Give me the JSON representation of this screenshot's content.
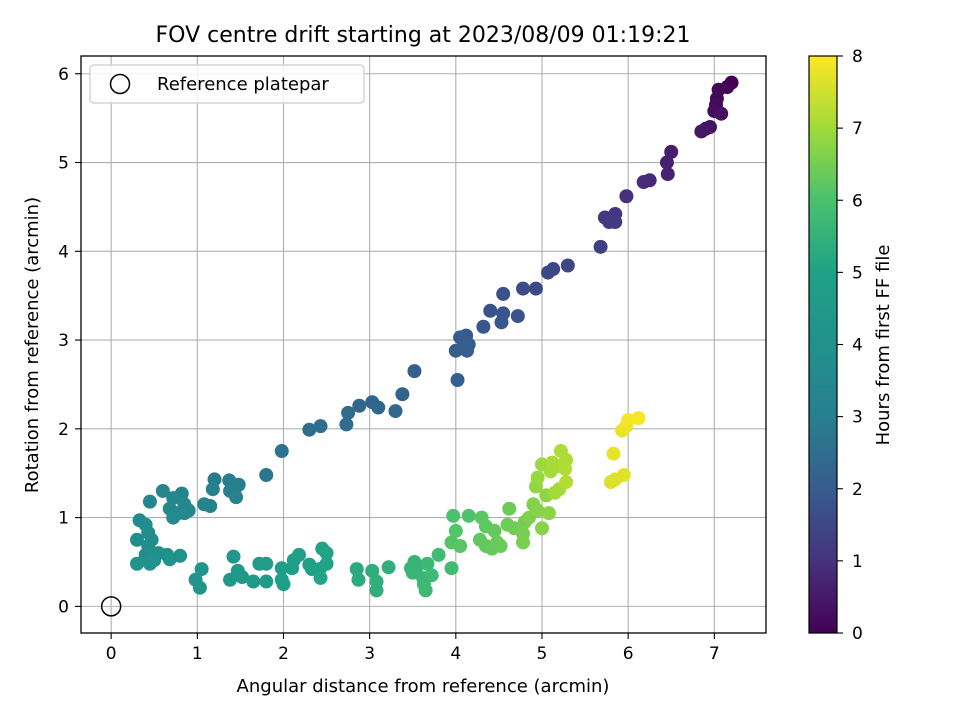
{
  "chart_data": {
    "type": "scatter",
    "title": "FOV centre drift starting at 2023/08/09 01:19:21",
    "xlabel": "Angular distance from reference (arcmin)",
    "ylabel": "Rotation from reference (arcmin)",
    "xlim": [
      -0.35,
      7.6
    ],
    "ylim": [
      -0.3,
      6.2
    ],
    "xticks": [
      "0",
      "1",
      "2",
      "3",
      "4",
      "5",
      "6",
      "7"
    ],
    "yticks": [
      "0",
      "1",
      "2",
      "3",
      "4",
      "5",
      "6"
    ],
    "grid": true,
    "legend": {
      "position": "top-left",
      "entries": [
        "Reference platepar"
      ]
    },
    "reference_point": {
      "x": 0,
      "y": 0
    },
    "colorbar": {
      "label": "Hours from first FF file",
      "range": [
        0,
        8
      ],
      "ticks": [
        "0",
        "1",
        "2",
        "3",
        "4",
        "5",
        "6",
        "7",
        "8"
      ],
      "colormap": "viridis"
    },
    "points": [
      {
        "x": 7.2,
        "y": 5.9,
        "c": 0.0
      },
      {
        "x": 7.15,
        "y": 5.85,
        "c": 0.05
      },
      {
        "x": 7.05,
        "y": 5.82,
        "c": 0.1
      },
      {
        "x": 7.03,
        "y": 5.72,
        "c": 0.15
      },
      {
        "x": 7.02,
        "y": 5.65,
        "c": 0.2
      },
      {
        "x": 7.0,
        "y": 5.58,
        "c": 0.25
      },
      {
        "x": 7.08,
        "y": 5.55,
        "c": 0.3
      },
      {
        "x": 6.95,
        "y": 5.4,
        "c": 0.35
      },
      {
        "x": 6.9,
        "y": 5.38,
        "c": 0.4
      },
      {
        "x": 6.85,
        "y": 5.35,
        "c": 0.45
      },
      {
        "x": 6.5,
        "y": 5.12,
        "c": 0.6
      },
      {
        "x": 6.45,
        "y": 5.0,
        "c": 0.65
      },
      {
        "x": 6.46,
        "y": 4.87,
        "c": 0.7
      },
      {
        "x": 6.25,
        "y": 4.8,
        "c": 0.8
      },
      {
        "x": 6.18,
        "y": 4.78,
        "c": 0.85
      },
      {
        "x": 5.98,
        "y": 4.62,
        "c": 0.95
      },
      {
        "x": 5.85,
        "y": 4.42,
        "c": 1.05
      },
      {
        "x": 5.73,
        "y": 4.38,
        "c": 1.1
      },
      {
        "x": 5.78,
        "y": 4.33,
        "c": 1.15
      },
      {
        "x": 5.85,
        "y": 4.33,
        "c": 1.2
      },
      {
        "x": 5.68,
        "y": 4.05,
        "c": 1.3
      },
      {
        "x": 5.3,
        "y": 3.84,
        "c": 1.45
      },
      {
        "x": 5.13,
        "y": 3.8,
        "c": 1.5
      },
      {
        "x": 5.07,
        "y": 3.76,
        "c": 1.55
      },
      {
        "x": 4.93,
        "y": 3.58,
        "c": 1.6
      },
      {
        "x": 4.78,
        "y": 3.58,
        "c": 1.65
      },
      {
        "x": 4.55,
        "y": 3.52,
        "c": 1.7
      },
      {
        "x": 4.4,
        "y": 3.33,
        "c": 1.75
      },
      {
        "x": 4.55,
        "y": 3.3,
        "c": 1.8
      },
      {
        "x": 4.72,
        "y": 3.27,
        "c": 1.82
      },
      {
        "x": 4.53,
        "y": 3.2,
        "c": 1.85
      },
      {
        "x": 4.32,
        "y": 3.15,
        "c": 1.9
      },
      {
        "x": 4.12,
        "y": 3.05,
        "c": 1.95
      },
      {
        "x": 4.05,
        "y": 3.03,
        "c": 1.97
      },
      {
        "x": 4.1,
        "y": 2.98,
        "c": 2.0
      },
      {
        "x": 4.15,
        "y": 2.95,
        "c": 2.02
      },
      {
        "x": 4.0,
        "y": 2.88,
        "c": 2.04
      },
      {
        "x": 4.13,
        "y": 2.88,
        "c": 2.06
      },
      {
        "x": 3.52,
        "y": 2.65,
        "c": 2.1
      },
      {
        "x": 4.02,
        "y": 2.55,
        "c": 2.12
      },
      {
        "x": 3.38,
        "y": 2.39,
        "c": 2.2
      },
      {
        "x": 3.03,
        "y": 2.3,
        "c": 2.25
      },
      {
        "x": 2.88,
        "y": 2.26,
        "c": 2.3
      },
      {
        "x": 3.1,
        "y": 2.24,
        "c": 2.32
      },
      {
        "x": 3.3,
        "y": 2.2,
        "c": 2.35
      },
      {
        "x": 2.75,
        "y": 2.18,
        "c": 2.4
      },
      {
        "x": 2.73,
        "y": 2.05,
        "c": 2.45
      },
      {
        "x": 2.43,
        "y": 2.03,
        "c": 2.5
      },
      {
        "x": 2.3,
        "y": 1.99,
        "c": 2.55
      },
      {
        "x": 1.98,
        "y": 1.75,
        "c": 2.65
      },
      {
        "x": 1.8,
        "y": 1.48,
        "c": 2.75
      },
      {
        "x": 1.2,
        "y": 1.43,
        "c": 2.9
      },
      {
        "x": 1.37,
        "y": 1.42,
        "c": 2.95
      },
      {
        "x": 1.48,
        "y": 1.37,
        "c": 3.0
      },
      {
        "x": 1.4,
        "y": 1.33,
        "c": 3.02
      },
      {
        "x": 1.18,
        "y": 1.32,
        "c": 3.05
      },
      {
        "x": 1.38,
        "y": 1.3,
        "c": 3.1
      },
      {
        "x": 1.43,
        "y": 1.28,
        "c": 3.12
      },
      {
        "x": 1.45,
        "y": 1.23,
        "c": 3.15
      },
      {
        "x": 1.15,
        "y": 1.13,
        "c": 3.2
      },
      {
        "x": 1.08,
        "y": 1.15,
        "c": 3.22
      },
      {
        "x": 0.6,
        "y": 1.3,
        "c": 3.3
      },
      {
        "x": 0.82,
        "y": 1.27,
        "c": 3.35
      },
      {
        "x": 0.72,
        "y": 1.22,
        "c": 3.4
      },
      {
        "x": 0.45,
        "y": 1.18,
        "c": 3.42
      },
      {
        "x": 0.85,
        "y": 1.15,
        "c": 3.45
      },
      {
        "x": 0.68,
        "y": 1.1,
        "c": 3.5
      },
      {
        "x": 0.9,
        "y": 1.08,
        "c": 3.52
      },
      {
        "x": 0.78,
        "y": 1.05,
        "c": 3.55
      },
      {
        "x": 0.85,
        "y": 1.05,
        "c": 3.57
      },
      {
        "x": 0.72,
        "y": 1.0,
        "c": 3.6
      },
      {
        "x": 0.33,
        "y": 0.97,
        "c": 3.65
      },
      {
        "x": 0.4,
        "y": 0.92,
        "c": 3.7
      },
      {
        "x": 0.43,
        "y": 0.83,
        "c": 3.75
      },
      {
        "x": 0.47,
        "y": 0.75,
        "c": 3.8
      },
      {
        "x": 0.3,
        "y": 0.75,
        "c": 3.82
      },
      {
        "x": 0.43,
        "y": 0.68,
        "c": 3.85
      },
      {
        "x": 0.48,
        "y": 0.6,
        "c": 3.88
      },
      {
        "x": 0.4,
        "y": 0.58,
        "c": 3.9
      },
      {
        "x": 0.55,
        "y": 0.6,
        "c": 3.95
      },
      {
        "x": 0.65,
        "y": 0.58,
        "c": 3.97
      },
      {
        "x": 0.8,
        "y": 0.57,
        "c": 4.0
      },
      {
        "x": 0.5,
        "y": 0.52,
        "c": 4.02
      },
      {
        "x": 0.3,
        "y": 0.48,
        "c": 4.05
      },
      {
        "x": 0.45,
        "y": 0.48,
        "c": 4.07
      },
      {
        "x": 0.68,
        "y": 0.53,
        "c": 4.1
      },
      {
        "x": 1.05,
        "y": 0.42,
        "c": 4.2
      },
      {
        "x": 0.98,
        "y": 0.3,
        "c": 4.25
      },
      {
        "x": 1.03,
        "y": 0.21,
        "c": 4.3
      },
      {
        "x": 1.42,
        "y": 0.56,
        "c": 4.35
      },
      {
        "x": 1.47,
        "y": 0.4,
        "c": 4.4
      },
      {
        "x": 1.38,
        "y": 0.3,
        "c": 4.45
      },
      {
        "x": 1.47,
        "y": 0.36,
        "c": 4.5
      },
      {
        "x": 1.52,
        "y": 0.33,
        "c": 4.52
      },
      {
        "x": 1.65,
        "y": 0.28,
        "c": 4.6
      },
      {
        "x": 1.8,
        "y": 0.28,
        "c": 4.65
      },
      {
        "x": 1.72,
        "y": 0.48,
        "c": 4.7
      },
      {
        "x": 1.8,
        "y": 0.48,
        "c": 4.72
      },
      {
        "x": 1.98,
        "y": 0.3,
        "c": 4.8
      },
      {
        "x": 2.0,
        "y": 0.25,
        "c": 4.82
      },
      {
        "x": 1.98,
        "y": 0.43,
        "c": 4.85
      },
      {
        "x": 2.1,
        "y": 0.43,
        "c": 4.88
      },
      {
        "x": 2.12,
        "y": 0.52,
        "c": 4.9
      },
      {
        "x": 2.18,
        "y": 0.58,
        "c": 4.92
      },
      {
        "x": 2.3,
        "y": 0.47,
        "c": 4.95
      },
      {
        "x": 2.33,
        "y": 0.42,
        "c": 4.97
      },
      {
        "x": 2.42,
        "y": 0.42,
        "c": 5.0
      },
      {
        "x": 2.45,
        "y": 0.65,
        "c": 5.02
      },
      {
        "x": 2.5,
        "y": 0.6,
        "c": 5.05
      },
      {
        "x": 2.5,
        "y": 0.48,
        "c": 5.07
      },
      {
        "x": 2.43,
        "y": 0.32,
        "c": 5.1
      },
      {
        "x": 2.85,
        "y": 0.42,
        "c": 5.25
      },
      {
        "x": 2.87,
        "y": 0.3,
        "c": 5.3
      },
      {
        "x": 3.03,
        "y": 0.4,
        "c": 5.35
      },
      {
        "x": 3.08,
        "y": 0.28,
        "c": 5.4
      },
      {
        "x": 3.08,
        "y": 0.18,
        "c": 5.42
      },
      {
        "x": 3.22,
        "y": 0.44,
        "c": 5.45
      },
      {
        "x": 3.48,
        "y": 0.43,
        "c": 5.55
      },
      {
        "x": 3.52,
        "y": 0.5,
        "c": 5.58
      },
      {
        "x": 3.55,
        "y": 0.45,
        "c": 5.6
      },
      {
        "x": 3.5,
        "y": 0.38,
        "c": 5.62
      },
      {
        "x": 3.62,
        "y": 0.32,
        "c": 5.65
      },
      {
        "x": 3.67,
        "y": 0.48,
        "c": 5.68
      },
      {
        "x": 3.63,
        "y": 0.25,
        "c": 5.7
      },
      {
        "x": 3.65,
        "y": 0.18,
        "c": 5.72
      },
      {
        "x": 3.72,
        "y": 0.35,
        "c": 5.75
      },
      {
        "x": 3.8,
        "y": 0.58,
        "c": 5.78
      },
      {
        "x": 3.95,
        "y": 0.43,
        "c": 5.8
      },
      {
        "x": 3.97,
        "y": 1.02,
        "c": 6.0
      },
      {
        "x": 4.15,
        "y": 1.02,
        "c": 6.05
      },
      {
        "x": 4.0,
        "y": 0.85,
        "c": 6.1
      },
      {
        "x": 3.95,
        "y": 0.72,
        "c": 6.12
      },
      {
        "x": 4.05,
        "y": 0.68,
        "c": 6.15
      },
      {
        "x": 4.3,
        "y": 1.0,
        "c": 6.2
      },
      {
        "x": 4.35,
        "y": 0.9,
        "c": 6.22
      },
      {
        "x": 4.28,
        "y": 0.75,
        "c": 6.25
      },
      {
        "x": 4.35,
        "y": 0.68,
        "c": 6.28
      },
      {
        "x": 4.45,
        "y": 0.85,
        "c": 6.3
      },
      {
        "x": 4.42,
        "y": 0.65,
        "c": 6.32
      },
      {
        "x": 4.48,
        "y": 0.72,
        "c": 6.35
      },
      {
        "x": 4.52,
        "y": 0.68,
        "c": 6.37
      },
      {
        "x": 4.62,
        "y": 1.1,
        "c": 6.4
      },
      {
        "x": 4.6,
        "y": 0.92,
        "c": 6.42
      },
      {
        "x": 4.68,
        "y": 0.88,
        "c": 6.45
      },
      {
        "x": 4.8,
        "y": 0.95,
        "c": 6.5
      },
      {
        "x": 4.78,
        "y": 0.82,
        "c": 6.52
      },
      {
        "x": 4.78,
        "y": 0.72,
        "c": 6.55
      },
      {
        "x": 4.85,
        "y": 1.0,
        "c": 6.6
      },
      {
        "x": 4.9,
        "y": 1.15,
        "c": 6.65
      },
      {
        "x": 4.95,
        "y": 1.08,
        "c": 6.7
      },
      {
        "x": 5.0,
        "y": 0.88,
        "c": 6.72
      },
      {
        "x": 5.08,
        "y": 1.05,
        "c": 6.75
      },
      {
        "x": 5.05,
        "y": 1.25,
        "c": 6.8
      },
      {
        "x": 4.93,
        "y": 1.35,
        "c": 6.85
      },
      {
        "x": 4.95,
        "y": 1.45,
        "c": 6.9
      },
      {
        "x": 5.0,
        "y": 1.6,
        "c": 6.95
      },
      {
        "x": 5.15,
        "y": 1.28,
        "c": 7.0
      },
      {
        "x": 5.2,
        "y": 1.32,
        "c": 7.02
      },
      {
        "x": 5.1,
        "y": 1.52,
        "c": 7.05
      },
      {
        "x": 5.12,
        "y": 1.62,
        "c": 7.08
      },
      {
        "x": 5.2,
        "y": 1.58,
        "c": 7.1
      },
      {
        "x": 5.22,
        "y": 1.75,
        "c": 7.12
      },
      {
        "x": 5.28,
        "y": 1.65,
        "c": 7.15
      },
      {
        "x": 5.27,
        "y": 1.55,
        "c": 7.18
      },
      {
        "x": 5.28,
        "y": 1.4,
        "c": 7.2
      },
      {
        "x": 5.8,
        "y": 1.4,
        "c": 7.6
      },
      {
        "x": 5.85,
        "y": 1.43,
        "c": 7.65
      },
      {
        "x": 5.95,
        "y": 1.48,
        "c": 7.7
      },
      {
        "x": 5.83,
        "y": 1.72,
        "c": 7.75
      },
      {
        "x": 5.93,
        "y": 1.98,
        "c": 7.8
      },
      {
        "x": 5.98,
        "y": 2.03,
        "c": 7.85
      },
      {
        "x": 6.0,
        "y": 2.1,
        "c": 7.9
      },
      {
        "x": 6.12,
        "y": 2.12,
        "c": 7.95
      }
    ]
  }
}
